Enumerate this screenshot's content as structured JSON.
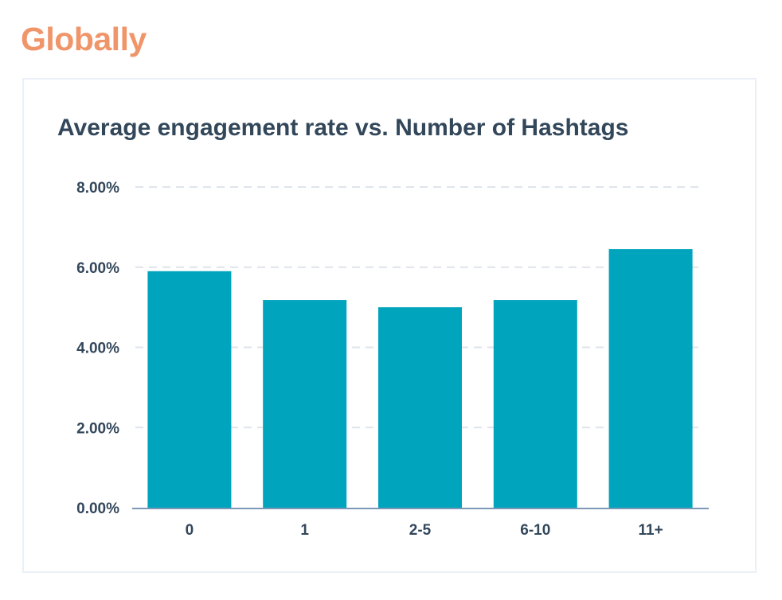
{
  "heading": "Globally",
  "colors": {
    "heading": "#f0956a",
    "title": "#33475b",
    "bar": "#00a4bd",
    "gridline": "#dfe3eb",
    "axis": "#7c98b6",
    "tick_text": "#33475b"
  },
  "chart_data": {
    "type": "bar",
    "title": "Average engagement rate vs. Number of Hashtags",
    "xlabel": "",
    "ylabel": "",
    "categories": [
      "0",
      "1",
      "2-5",
      "6-10",
      "11+"
    ],
    "values": [
      5.9,
      5.18,
      5.0,
      5.18,
      6.45
    ],
    "value_unit": "%",
    "ylim": [
      0,
      8
    ],
    "yticks": [
      0,
      2,
      4,
      6,
      8
    ],
    "ytick_labels": [
      "0.00%",
      "2.00%",
      "4.00%",
      "6.00%",
      "8.00%"
    ],
    "grid": true,
    "grid_style": "dashed",
    "legend": "none"
  }
}
